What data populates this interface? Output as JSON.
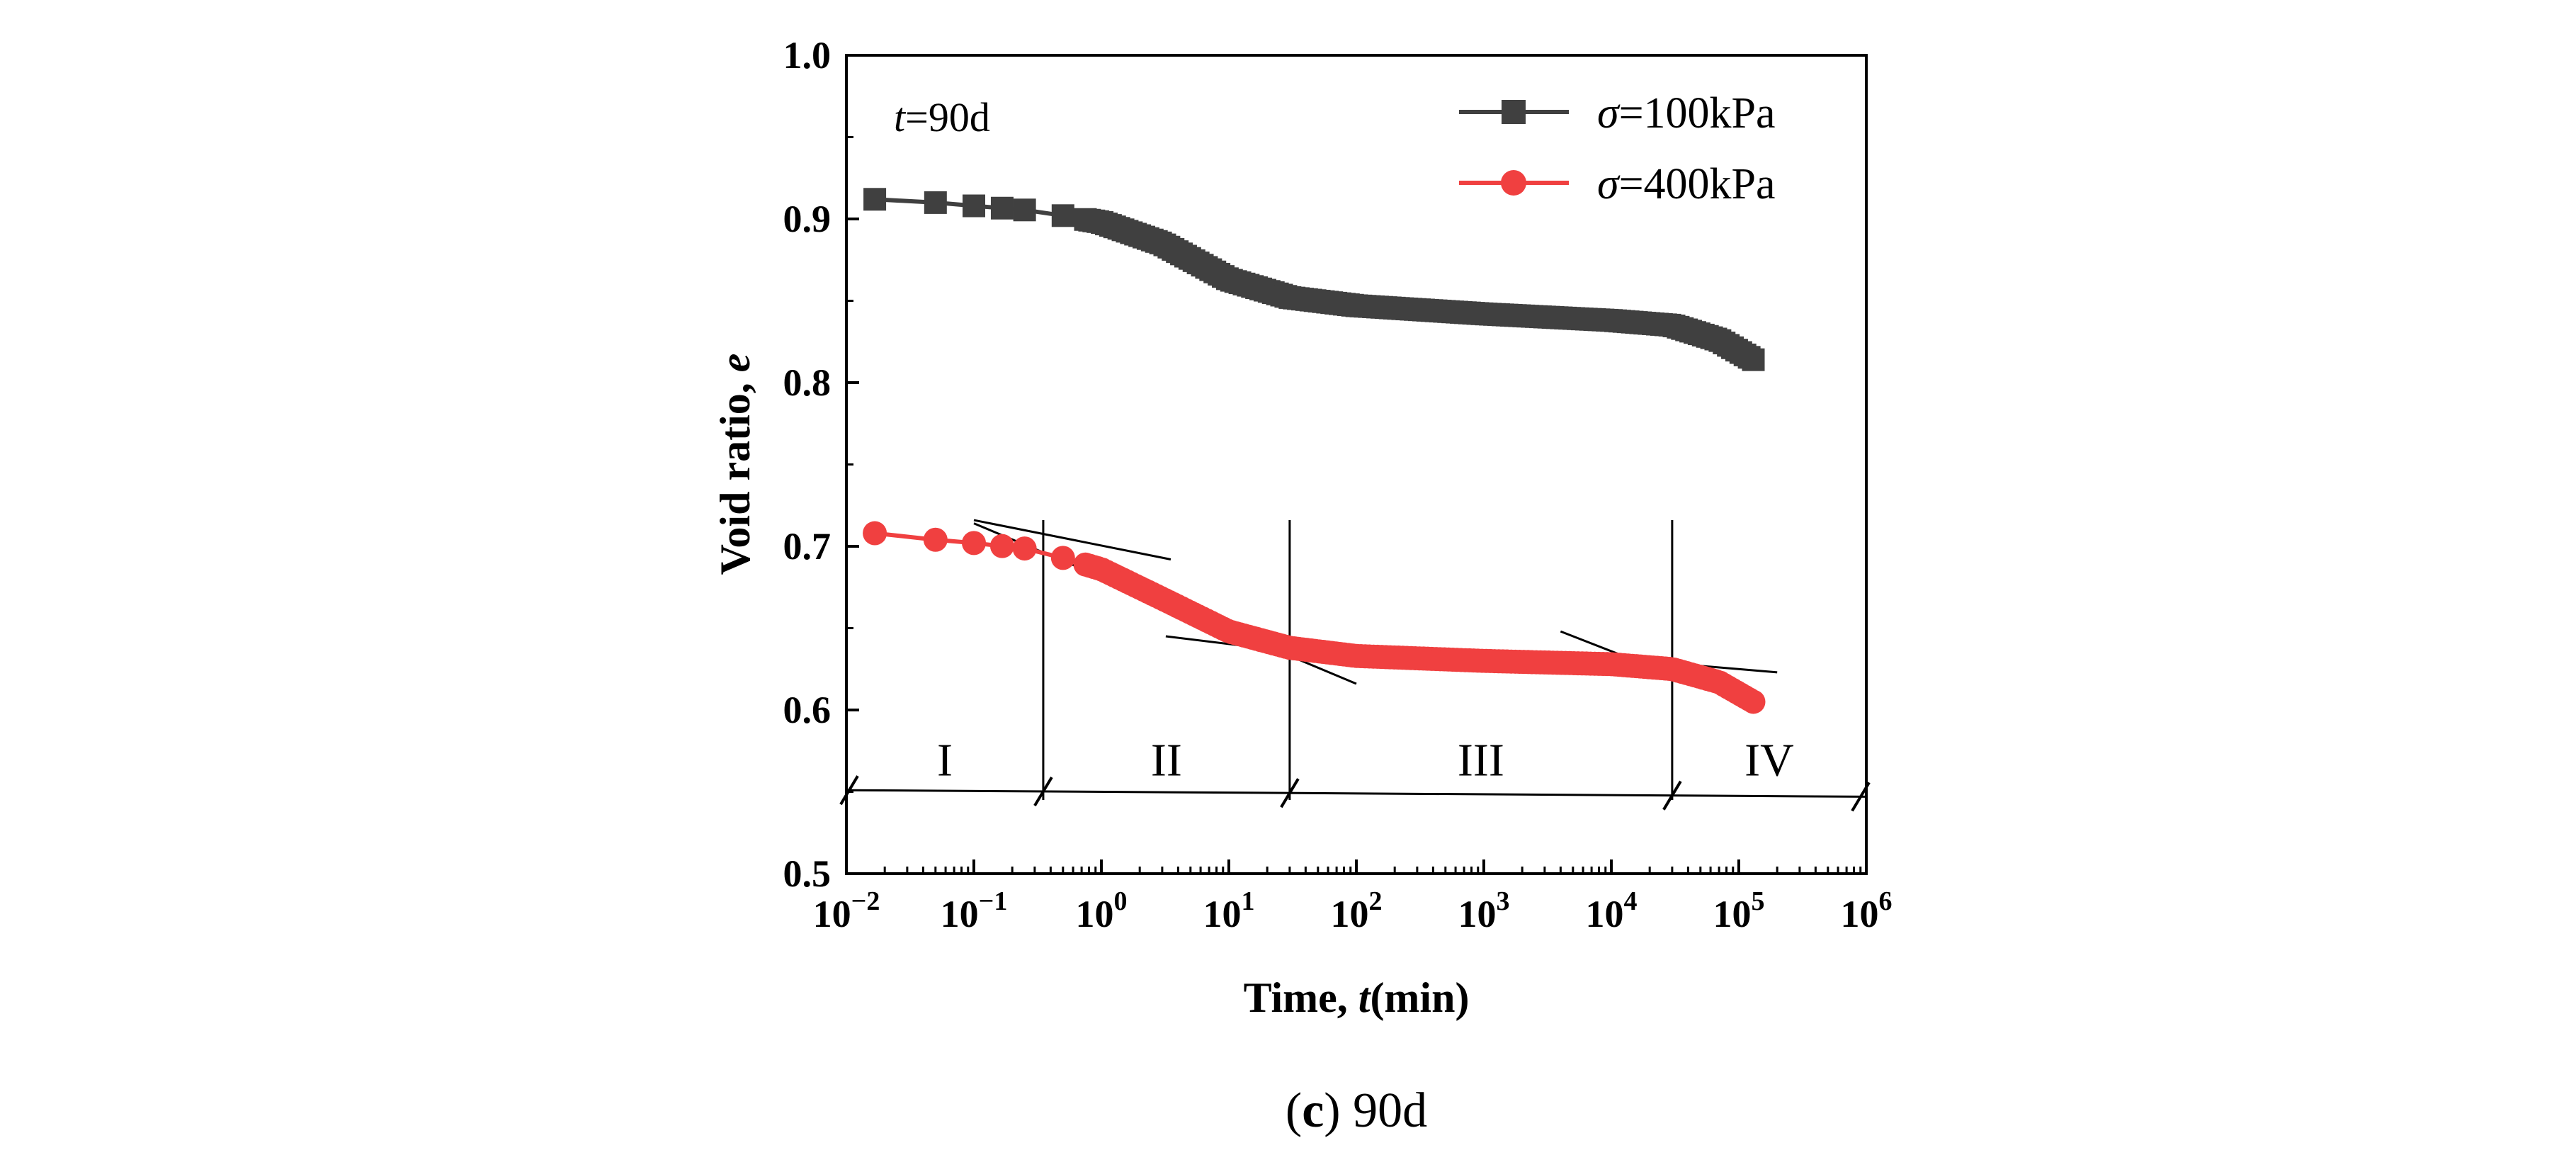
{
  "chart_data": {
    "type": "scatter",
    "x_scale": "log",
    "xlabel": "Time, t(min)",
    "xlabel_prefix": "Time, ",
    "xlabel_var": "t",
    "xlabel_suffix": "(min)",
    "ylabel": "Void ratio, e",
    "ylabel_prefix": "Void ratio, ",
    "ylabel_var": "e",
    "xlim": [
      0.01,
      1000000
    ],
    "ylim": [
      0.5,
      1.0
    ],
    "x_ticks": [
      {
        "base": "10",
        "exp": "−2"
      },
      {
        "base": "10",
        "exp": "−1"
      },
      {
        "base": "10",
        "exp": "0"
      },
      {
        "base": "10",
        "exp": "1"
      },
      {
        "base": "10",
        "exp": "2"
      },
      {
        "base": "10",
        "exp": "3"
      },
      {
        "base": "10",
        "exp": "4"
      },
      {
        "base": "10",
        "exp": "5"
      },
      {
        "base": "10",
        "exp": "6"
      }
    ],
    "y_ticks": [
      "0.5",
      "0.6",
      "0.7",
      "0.8",
      "0.9",
      "1.0"
    ],
    "annotation": {
      "var": "t",
      "text": "=90d"
    },
    "caption": {
      "letter": "c",
      "text": " 90d"
    },
    "series": [
      {
        "name": "σ=100kPa",
        "legend_var": "σ",
        "legend_text": "=100kPa",
        "color": "#404040",
        "marker": "square",
        "control_points": [
          [
            0.0167,
            0.912
          ],
          [
            0.05,
            0.91
          ],
          [
            0.1,
            0.908
          ],
          [
            0.3,
            0.905
          ],
          [
            1,
            0.898
          ],
          [
            3,
            0.885
          ],
          [
            10,
            0.863
          ],
          [
            30,
            0.852
          ],
          [
            100,
            0.847
          ],
          [
            1000,
            0.842
          ],
          [
            10000,
            0.838
          ],
          [
            30000,
            0.835
          ],
          [
            70000,
            0.826
          ],
          [
            130000,
            0.814
          ]
        ]
      },
      {
        "name": "σ=400kPa",
        "legend_var": "σ",
        "legend_text": "=400kPa",
        "color": "#f04040",
        "marker": "circle",
        "control_points": [
          [
            0.0167,
            0.708
          ],
          [
            0.05,
            0.704
          ],
          [
            0.1,
            0.702
          ],
          [
            0.3,
            0.698
          ],
          [
            1,
            0.686
          ],
          [
            3,
            0.668
          ],
          [
            10,
            0.648
          ],
          [
            30,
            0.638
          ],
          [
            100,
            0.633
          ],
          [
            1000,
            0.63
          ],
          [
            10000,
            0.628
          ],
          [
            30000,
            0.625
          ],
          [
            70000,
            0.617
          ],
          [
            130000,
            0.605
          ]
        ]
      }
    ],
    "regions": [
      {
        "label": "I",
        "x_from": 0.01,
        "x_to": 0.35
      },
      {
        "label": "II",
        "x_from": 0.35,
        "x_to": 30
      },
      {
        "label": "III",
        "x_from": 30,
        "x_to": 30000
      },
      {
        "label": "IV",
        "x_from": 30000,
        "x_to": 1000000
      }
    ],
    "region_boundaries": [
      0.35,
      30,
      30000
    ],
    "tangent_lines": [
      {
        "x1": 0.1,
        "y1": 0.716,
        "x2": 3.5,
        "y2": 0.692
      },
      {
        "x1": 0.1,
        "y1": 0.714,
        "x2": 100,
        "y2": 0.616
      },
      {
        "x1": 3.2,
        "y1": 0.645,
        "x2": 250,
        "y2": 0.627
      },
      {
        "x1": 6000,
        "y1": 0.633,
        "x2": 200000,
        "y2": 0.623
      },
      {
        "x1": 4000,
        "y1": 0.648,
        "x2": 140000,
        "y2": 0.601
      }
    ]
  }
}
